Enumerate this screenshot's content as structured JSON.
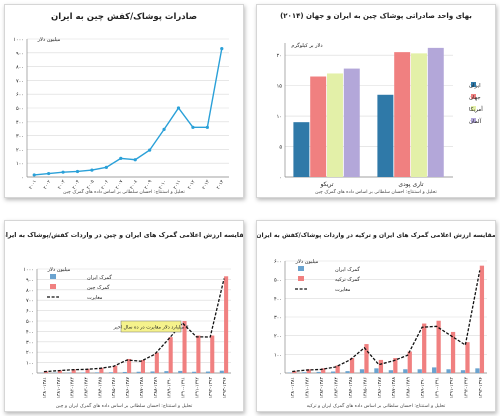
{
  "chart_data": [
    {
      "id": "exports",
      "type": "line",
      "title": "صادرات پوشاک/کفش چین به ایران",
      "ylabel": "میلیون دلار",
      "ylim": [
        0,
        1000
      ],
      "yticks": [
        0,
        100,
        200,
        300,
        400,
        500,
        600,
        700,
        800,
        900,
        1000
      ],
      "ytick_labels": [
        "۰",
        "۱۰۰",
        "۲۰۰",
        "۳۰۰",
        "۴۰۰",
        "۵۰۰",
        "۶۰۰",
        "۷۰۰",
        "۸۰۰",
        "۹۰۰",
        "۱۰۰۰"
      ],
      "categories": [
        "۲۰۰۱",
        "۲۰۰۲",
        "۲۰۰۳",
        "۲۰۰۴",
        "۲۰۰۵",
        "۲۰۰۶",
        "۲۰۰۷",
        "۲۰۰۸",
        "۲۰۰۹",
        "۲۰۱۰",
        "۲۰۱۱",
        "۲۰۱۲",
        "۲۰۱۳",
        "۲۰۱۴"
      ],
      "series": [
        {
          "name": "",
          "color": "#2aa0d8",
          "values": [
            15,
            25,
            35,
            40,
            50,
            70,
            135,
            125,
            195,
            345,
            500,
            360,
            360,
            930
          ]
        }
      ],
      "grid": true,
      "source": "تحلیل و استنتاج: احسان سلطانی بر اساس داده های گمرک چین"
    },
    {
      "id": "unit-prices",
      "type": "bar",
      "title": "بهای واحد صادراتی پوشاک چین به ایران و جهان (۲۰۱۴)",
      "ylabel": "دلار بر کیلوگرم",
      "ylim": [
        0,
        22
      ],
      "yticks": [
        0,
        5,
        10,
        15,
        20
      ],
      "ytick_labels": [
        "۰",
        "۵",
        "۱۰",
        "۱۵",
        "۲۰"
      ],
      "categories": [
        "تریکو",
        "تاری پودی"
      ],
      "series": [
        {
          "name": "ایران",
          "color": "#2f79a8",
          "values": [
            9.0,
            13.5
          ]
        },
        {
          "name": "جهان",
          "color": "#f08080",
          "values": [
            16.5,
            20.5
          ]
        },
        {
          "name": "آمریکا",
          "color": "#e3f0a8",
          "values": [
            17.0,
            20.3
          ]
        },
        {
          "name": "آلمان",
          "color": "#b3a7d9",
          "values": [
            17.8,
            21.2
          ]
        }
      ],
      "legend": "right",
      "grid": true,
      "source": "تحلیل و استنتاج: احسان سلطانی بر اساس داده های گمرک چین"
    },
    {
      "id": "iran-china",
      "type": "bar",
      "title": "مقایسه ارزش اعلامی گمرک های ایران و چین در واردات کفش/پوشاک به ایران",
      "ylabel": "میلیون دلار",
      "ylim": [
        0,
        1000
      ],
      "yticks": [
        0,
        100,
        200,
        300,
        400,
        500,
        600,
        700,
        800,
        900,
        1000
      ],
      "ytick_labels": [
        "۰",
        "۱۰۰",
        "۲۰۰",
        "۳۰۰",
        "۴۰۰",
        "۵۰۰",
        "۶۰۰",
        "۷۰۰",
        "۸۰۰",
        "۹۰۰",
        "۱۰۰۰"
      ],
      "categories": [
        "۱۳۸۰-۱۳۸۱",
        "۱۳۸۱-۱۳۸۲",
        "۱۳۸۲-۱۳۸۳",
        "۱۳۸۳-۱۳۸۴",
        "۱۳۸۴-۱۳۸۵",
        "۱۳۸۵-۱۳۸۶",
        "۱۳۸۶-۱۳۸۷",
        "۱۳۸۷-۱۳۸۸",
        "۱۳۸۸-۱۳۸۹",
        "۱۳۸۹-۱۳۹۰",
        "۱۳۹۰-۱۳۹۱",
        "۱۳۹۱-۱۳۹۲",
        "۱۳۹۲-۱۳۹۳",
        "۱۳۹۳-۱۳۹۴"
      ],
      "series": [
        {
          "name": "گمرک ایران",
          "type": "bar",
          "color": "#6aa3cf",
          "values": [
            2,
            3,
            4,
            5,
            6,
            7,
            10,
            12,
            15,
            18,
            20,
            12,
            14,
            22
          ]
        },
        {
          "name": "گمرک چین",
          "type": "bar",
          "color": "#f08080",
          "values": [
            15,
            25,
            35,
            40,
            50,
            70,
            135,
            125,
            195,
            345,
            500,
            360,
            360,
            930
          ]
        },
        {
          "name": "مغایرت",
          "type": "line",
          "color": "#111111",
          "values": [
            13,
            22,
            31,
            35,
            44,
            63,
            125,
            113,
            180,
            327,
            480,
            348,
            346,
            908
          ]
        }
      ],
      "legend": "top-left",
      "annotation": "۳ میلیارد دلار مغایرت در ده سال اخیر",
      "annotation_color": "#f5f28c",
      "grid": true,
      "source": "تحلیل و استنتاج: احسان سلطانی بر اساس داده های گمرک ایران و چین"
    },
    {
      "id": "iran-turkey",
      "type": "bar",
      "title": "مقایسه ارزش اعلامی گمرک های ایران و ترکیه در واردات پوشاک/کفش به ایران",
      "ylabel": "میلیون دلار",
      "ylim": [
        0,
        600
      ],
      "yticks": [
        0,
        100,
        200,
        300,
        400,
        500,
        600
      ],
      "ytick_labels": [
        "۰",
        "۱۰۰",
        "۲۰۰",
        "۳۰۰",
        "۴۰۰",
        "۵۰۰",
        "۶۰۰"
      ],
      "categories": [
        "۱۳۸۰-۱۳۸۱",
        "۱۳۸۱-۱۳۸۲",
        "۱۳۸۲-۱۳۸۳",
        "۱۳۸۳-۱۳۸۴",
        "۱۳۸۴-۱۳۸۵",
        "۱۳۸۵-۱۳۸۶",
        "۱۳۸۶-۱۳۸۷",
        "۱۳۸۷-۱۳۸۸",
        "۱۳۸۸-۱۳۸۹",
        "۱۳۸۹-۱۳۹۰",
        "۱۳۹۰-۱۳۹۱",
        "۱۳۹۱-۱۳۹۲",
        "۱۳۹۲-۱۳۹۳",
        "۱۳۹۳-۱۳۹۴"
      ],
      "series": [
        {
          "name": "گمرک ایران",
          "type": "bar",
          "color": "#6aa3cf",
          "values": [
            2,
            4,
            6,
            8,
            10,
            20,
            25,
            15,
            20,
            20,
            30,
            20,
            15,
            25
          ]
        },
        {
          "name": "گمرک ترکیه",
          "type": "bar",
          "color": "#f08080",
          "values": [
            10,
            20,
            25,
            40,
            80,
            155,
            70,
            80,
            115,
            265,
            280,
            220,
            165,
            575
          ]
        },
        {
          "name": "مغایرت",
          "type": "line",
          "color": "#111111",
          "values": [
            8,
            16,
            19,
            32,
            70,
            135,
            45,
            65,
            95,
            245,
            250,
            200,
            150,
            550
          ]
        }
      ],
      "legend": "top-left",
      "grid": true,
      "source": "تحلیل و استنتاج: احسان سلطانی بر اساس داده های گمرک ایران و ترکیه"
    }
  ]
}
